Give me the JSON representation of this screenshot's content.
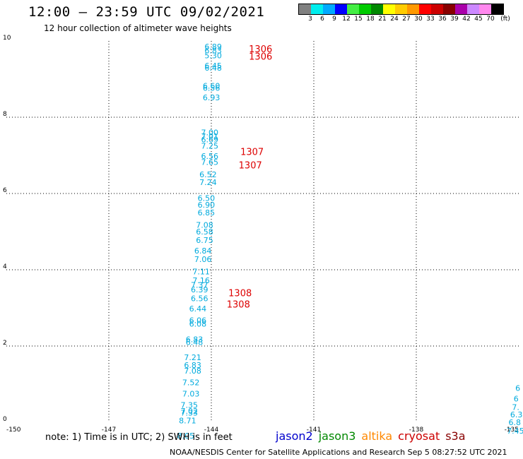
{
  "header": {
    "title": "12:00 — 23:59 UTC 09/02/2021",
    "subtitle": "12 hour collection of altimeter wave heights"
  },
  "legend": {
    "unit": "(ft)",
    "colors": [
      "#808080",
      "#00eeee",
      "#00aaff",
      "#0000ff",
      "#44ee44",
      "#00cc00",
      "#008800",
      "#ffff00",
      "#ffcc00",
      "#ff9900",
      "#ff0000",
      "#cc0000",
      "#880000",
      "#aa00aa",
      "#cc88ff",
      "#ff88ee",
      "#000000"
    ],
    "labels": [
      "3",
      "6",
      "9",
      "12",
      "15",
      "18",
      "21",
      "24",
      "27",
      "30",
      "33",
      "36",
      "39",
      "42",
      "45",
      "70"
    ]
  },
  "note": "note: 1) Time is in UTC; 2) SWH is in feet",
  "satellites": [
    {
      "name": "jason2",
      "color": "#0000cc"
    },
    {
      "name": "jason3",
      "color": "#008800"
    },
    {
      "name": "altika",
      "color": "#ff8800"
    },
    {
      "name": "cryosat",
      "color": "#cc0000"
    },
    {
      "name": "s3a",
      "color": "#880000"
    }
  ],
  "footer": "NOAA/NESDIS Center for Satellite Applications and Research    Sep  5 08:27:52 UTC 2021",
  "chart_data": {
    "type": "scatter",
    "title": "12:00 — 23:59 UTC 09/02/2021",
    "subtitle": "12 hour collection of altimeter wave heights",
    "xlim": [
      -150,
      -135
    ],
    "ylim": [
      0,
      10
    ],
    "x_ticks": [
      "-150",
      "-147",
      "-144",
      "-141",
      "-138",
      "-135"
    ],
    "y_ticks": [
      "0",
      "2",
      "4",
      "6",
      "8",
      "10"
    ],
    "grid": true,
    "series": [
      {
        "name": "s3a",
        "color": "#00aadd",
        "points": [
          {
            "x": -144.2,
            "y": 9.85,
            "label": "6.89"
          },
          {
            "x": -144.2,
            "y": 9.75,
            "label": "6.83"
          },
          {
            "x": -144.2,
            "y": 9.62,
            "label": "5.30"
          },
          {
            "x": -144.2,
            "y": 9.35,
            "label": "6.45"
          },
          {
            "x": -144.2,
            "y": 9.3,
            "label": "6.48"
          },
          {
            "x": -144.25,
            "y": 8.82,
            "label": "6.60"
          },
          {
            "x": -144.25,
            "y": 8.77,
            "label": "6.56"
          },
          {
            "x": -144.25,
            "y": 8.52,
            "label": "6.93"
          },
          {
            "x": -144.3,
            "y": 7.6,
            "label": "7.00"
          },
          {
            "x": -144.3,
            "y": 7.5,
            "label": "7.01"
          },
          {
            "x": -144.3,
            "y": 7.42,
            "label": "6.69"
          },
          {
            "x": -144.3,
            "y": 7.25,
            "label": "7.25"
          },
          {
            "x": -144.3,
            "y": 6.98,
            "label": "6.56"
          },
          {
            "x": -144.3,
            "y": 6.82,
            "label": "7.65"
          },
          {
            "x": -144.35,
            "y": 6.5,
            "label": "6.52"
          },
          {
            "x": -144.35,
            "y": 6.3,
            "label": "7.24"
          },
          {
            "x": -144.4,
            "y": 5.88,
            "label": "6.50"
          },
          {
            "x": -144.4,
            "y": 5.7,
            "label": "6.90"
          },
          {
            "x": -144.4,
            "y": 5.5,
            "label": "6.85"
          },
          {
            "x": -144.45,
            "y": 5.18,
            "label": "7.08"
          },
          {
            "x": -144.45,
            "y": 5.0,
            "label": "6.58"
          },
          {
            "x": -144.45,
            "y": 4.78,
            "label": "6.75"
          },
          {
            "x": -144.5,
            "y": 4.5,
            "label": "6.84"
          },
          {
            "x": -144.5,
            "y": 4.28,
            "label": "7.06"
          },
          {
            "x": -144.55,
            "y": 3.95,
            "label": "7.11"
          },
          {
            "x": -144.55,
            "y": 3.72,
            "label": "7.16"
          },
          {
            "x": -144.6,
            "y": 3.6,
            "label": "7.37"
          },
          {
            "x": -144.6,
            "y": 3.48,
            "label": "6.39"
          },
          {
            "x": -144.6,
            "y": 3.25,
            "label": "6.56"
          },
          {
            "x": -144.65,
            "y": 2.98,
            "label": "6.44"
          },
          {
            "x": -144.65,
            "y": 2.68,
            "label": "6.06"
          },
          {
            "x": -144.65,
            "y": 2.58,
            "label": "6.08"
          },
          {
            "x": -144.75,
            "y": 2.18,
            "label": "6.83"
          },
          {
            "x": -144.75,
            "y": 2.1,
            "label": "6.48"
          },
          {
            "x": -144.8,
            "y": 1.7,
            "label": "7.21"
          },
          {
            "x": -144.8,
            "y": 1.5,
            "label": "6.83"
          },
          {
            "x": -144.8,
            "y": 1.35,
            "label": "7.08"
          },
          {
            "x": -144.85,
            "y": 1.05,
            "label": "7.52"
          },
          {
            "x": -144.85,
            "y": 0.75,
            "label": "7.03"
          },
          {
            "x": -144.9,
            "y": 0.45,
            "label": "7.35"
          },
          {
            "x": -144.9,
            "y": 0.3,
            "label": "7.02"
          },
          {
            "x": -144.9,
            "y": 0.25,
            "label": "7.33"
          },
          {
            "x": -144.95,
            "y": 0.05,
            "label": "8.71"
          },
          {
            "x": -145.0,
            "y": -0.35,
            "label": "8.05"
          }
        ]
      },
      {
        "name": "s3a",
        "color": "#00aadd",
        "points": [
          {
            "x": -135.1,
            "y": 0.9,
            "label": "6"
          },
          {
            "x": -135.15,
            "y": 0.62,
            "label": "6"
          },
          {
            "x": -135.2,
            "y": 0.4,
            "label": "7."
          },
          {
            "x": -135.25,
            "y": 0.2,
            "label": "6.3"
          },
          {
            "x": -135.3,
            "y": 0.0,
            "label": "6.8"
          },
          {
            "x": -135.35,
            "y": -0.22,
            "label": "7.45"
          }
        ]
      }
    ],
    "time_labels": [
      {
        "x": -142.9,
        "y": 9.8,
        "label": "1306"
      },
      {
        "x": -142.9,
        "y": 9.6,
        "label": "1306"
      },
      {
        "x": -143.15,
        "y": 7.1,
        "label": "1307"
      },
      {
        "x": -143.2,
        "y": 6.75,
        "label": "1307"
      },
      {
        "x": -143.5,
        "y": 3.4,
        "label": "1308"
      },
      {
        "x": -143.55,
        "y": 3.1,
        "label": "1308"
      }
    ],
    "time_label_color": "#dd0000"
  }
}
